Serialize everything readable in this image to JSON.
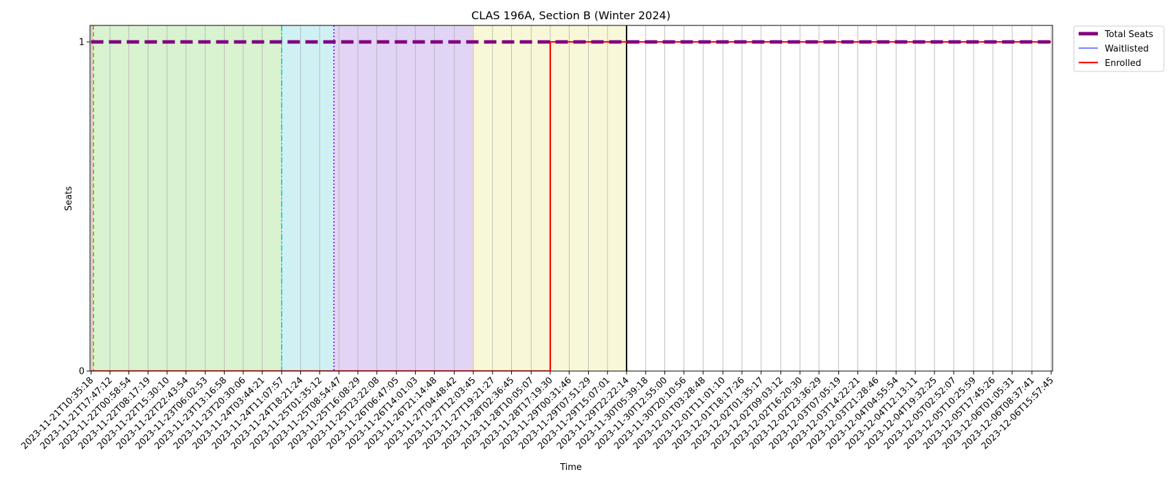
{
  "chart_data": {
    "type": "line",
    "title": "CLAS 196A, Section B (Winter 2024)",
    "xlabel": "Time",
    "ylabel": "Seats",
    "ylim": [
      0,
      1.05
    ],
    "yticks": [
      0,
      1
    ],
    "grid": "vertical",
    "legend_position": "outside-top-right",
    "x": [
      "2023-11-21T10:35:18",
      "2023-11-21T17:47:12",
      "2023-11-22T00:58:54",
      "2023-11-22T08:17:19",
      "2023-11-22T15:30:10",
      "2023-11-22T22:43:54",
      "2023-11-23T06:02:53",
      "2023-11-23T13:16:58",
      "2023-11-23T20:30:06",
      "2023-11-24T03:44:21",
      "2023-11-24T11:07:57",
      "2023-11-24T18:21:24",
      "2023-11-25T01:35:12",
      "2023-11-25T08:54:47",
      "2023-11-25T16:08:29",
      "2023-11-25T23:22:08",
      "2023-11-26T06:47:05",
      "2023-11-26T14:01:03",
      "2023-11-26T21:14:48",
      "2023-11-27T04:48:42",
      "2023-11-27T12:03:45",
      "2023-11-27T19:21:27",
      "2023-11-28T02:36:45",
      "2023-11-28T10:05:07",
      "2023-11-28T17:19:30",
      "2023-11-29T00:31:46",
      "2023-11-29T07:51:29",
      "2023-11-29T15:07:01",
      "2023-11-29T22:22:14",
      "2023-11-30T05:39:18",
      "2023-11-30T12:55:00",
      "2023-11-30T20:10:56",
      "2023-12-01T03:28:48",
      "2023-12-01T11:01:10",
      "2023-12-01T18:17:26",
      "2023-12-02T01:35:17",
      "2023-12-02T09:03:12",
      "2023-12-02T16:20:30",
      "2023-12-02T23:36:29",
      "2023-12-03T07:05:19",
      "2023-12-03T14:22:21",
      "2023-12-03T21:28:46",
      "2023-12-04T04:55:54",
      "2023-12-04T12:13:11",
      "2023-12-04T19:32:25",
      "2023-12-05T02:52:07",
      "2023-12-05T10:25:59",
      "2023-12-05T17:45:26",
      "2023-12-06T01:05:31",
      "2023-12-06T08:37:41",
      "2023-12-06T15:57:45"
    ],
    "series": [
      {
        "name": "Total Seats",
        "color": "#800080",
        "style": "dashed-thick",
        "values": [
          1,
          1,
          1,
          1,
          1,
          1,
          1,
          1,
          1,
          1,
          1,
          1,
          1,
          1,
          1,
          1,
          1,
          1,
          1,
          1,
          1,
          1,
          1,
          1,
          1,
          1,
          1,
          1,
          1,
          1,
          1,
          1,
          1,
          1,
          1,
          1,
          1,
          1,
          1,
          1,
          1,
          1,
          1,
          1,
          1,
          1,
          1,
          1,
          1,
          1,
          1
        ]
      },
      {
        "name": "Waitlisted",
        "color": "#0000ff",
        "style": "thin",
        "values": [
          0,
          0,
          0,
          0,
          0,
          0,
          0,
          0,
          0,
          0,
          0,
          0,
          0,
          0,
          0,
          0,
          0,
          0,
          0,
          0,
          0,
          0,
          0,
          0,
          0,
          0,
          0,
          0,
          0,
          0,
          0,
          0,
          0,
          0,
          0,
          0,
          0,
          0,
          0,
          0,
          0,
          0,
          0,
          0,
          0,
          0,
          0,
          0,
          0,
          0,
          0
        ]
      },
      {
        "name": "Enrolled",
        "color": "#ff0000",
        "style": "solid",
        "values": [
          0,
          0,
          0,
          0,
          0,
          0,
          0,
          0,
          0,
          0,
          0,
          0,
          0,
          0,
          0,
          0,
          0,
          0,
          0,
          0,
          0,
          0,
          0,
          0,
          1,
          1,
          1,
          1,
          1,
          1,
          1,
          1,
          1,
          1,
          1,
          1,
          1,
          1,
          1,
          1,
          1,
          1,
          1,
          1,
          1,
          1,
          1,
          1,
          1,
          1,
          1
        ]
      }
    ],
    "shaded_regions": [
      {
        "from": "2023-11-21T10:35:18",
        "to": "2023-11-21T11:30:00",
        "color": "#f4cccc"
      },
      {
        "from": "2023-11-21T11:30:00",
        "to": "2023-11-24T11:07:57",
        "color": "#d9f2d0"
      },
      {
        "from": "2023-11-24T11:07:57",
        "to": "2023-11-25T07:00:00",
        "color": "#cff1f4"
      },
      {
        "from": "2023-11-25T07:00:00",
        "to": "2023-11-27T12:03:45",
        "color": "#e2d4f5"
      },
      {
        "from": "2023-11-27T12:03:45",
        "to": "2023-11-29T22:22:14",
        "color": "#f8f8d8"
      }
    ],
    "marker_lines": [
      {
        "at": "2023-11-21T11:30:00",
        "color": "#33cc00",
        "style": "dashed"
      },
      {
        "at": "2023-11-24T11:07:57",
        "color": "#00c8c8",
        "style": "dashdot"
      },
      {
        "at": "2023-11-25T07:00:00",
        "color": "#6a00ff",
        "style": "dotted"
      },
      {
        "at": "2023-11-27T12:03:45",
        "color": "#e8d44d",
        "style": "solid-thin"
      },
      {
        "at": "2023-11-29T22:22:14",
        "color": "#000000",
        "style": "solid"
      }
    ]
  }
}
